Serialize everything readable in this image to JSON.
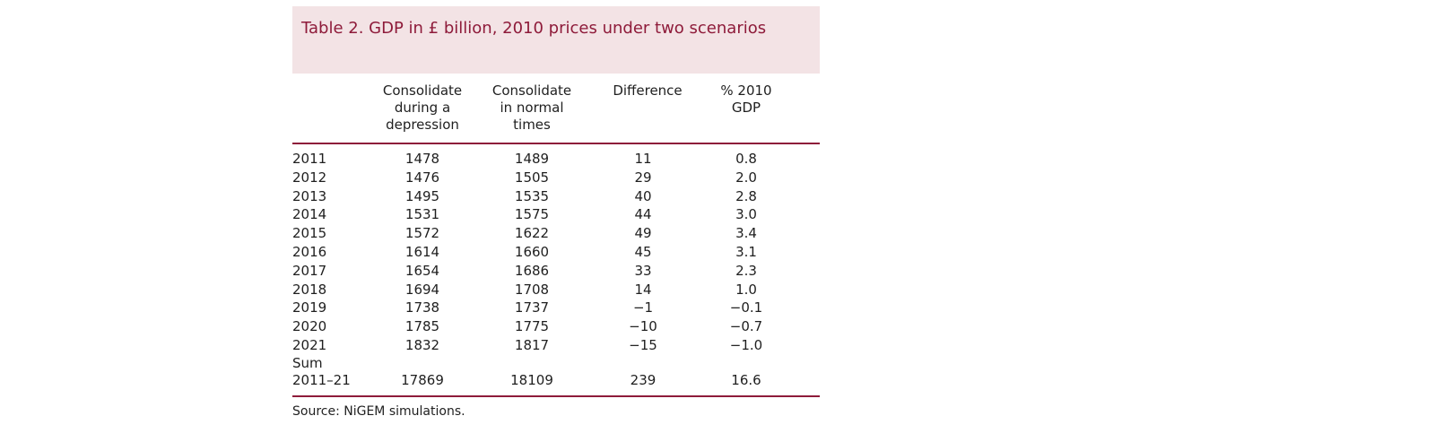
{
  "table": {
    "title": "Table 2. GDP in £ billion, 2010 prices under two scenarios",
    "columns": [
      "",
      "Consolidate\nduring a\ndepression",
      "Consolidate\nin normal\ntimes",
      "Difference",
      "% 2010\nGDP"
    ],
    "rows": [
      [
        "2011",
        "1478",
        "1489",
        "11",
        "0.8"
      ],
      [
        "2012",
        "1476",
        "1505",
        "29",
        "2.0"
      ],
      [
        "2013",
        "1495",
        "1535",
        "40",
        "2.8"
      ],
      [
        "2014",
        "1531",
        "1575",
        "44",
        "3.0"
      ],
      [
        "2015",
        "1572",
        "1622",
        "49",
        "3.4"
      ],
      [
        "2016",
        "1614",
        "1660",
        "45",
        "3.1"
      ],
      [
        "2017",
        "1654",
        "1686",
        "33",
        "2.3"
      ],
      [
        "2018",
        "1694",
        "1708",
        "14",
        "1.0"
      ],
      [
        "2019",
        "1738",
        "1737",
        "−1",
        "−0.1"
      ],
      [
        "2020",
        "1785",
        "1775",
        "−10",
        "−0.7"
      ],
      [
        "2021",
        "1832",
        "1817",
        "−15",
        "−1.0"
      ]
    ],
    "sum_label": "Sum",
    "sum_row": [
      "2011–21",
      "17869",
      "18109",
      "239",
      "16.6"
    ],
    "source": "Source: NiGEM simulations."
  }
}
